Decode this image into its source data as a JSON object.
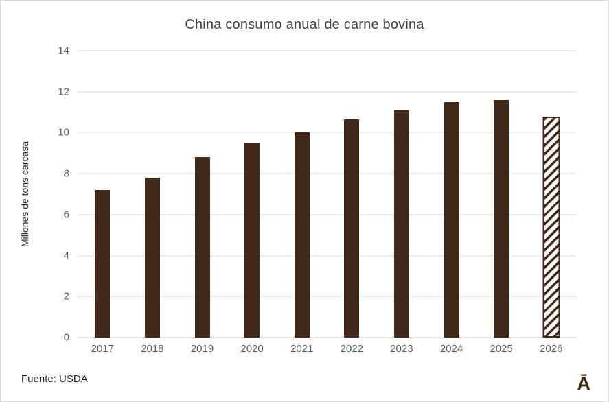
{
  "title": "China consumo anual de carne bovina",
  "source_label": "Fuente: USDA",
  "logo_text": "Ā",
  "colors": {
    "bar_fill": "#402918",
    "gridline": "#d9d9d9",
    "axis_label_text": "#595959",
    "title_text": "#404040"
  },
  "chart_data": {
    "type": "bar",
    "title": "China consumo anual de carne bovina",
    "categories": [
      "2017",
      "2018",
      "2019",
      "2020",
      "2021",
      "2022",
      "2023",
      "2024",
      "2025",
      "2026"
    ],
    "values": [
      7.2,
      7.8,
      8.8,
      9.5,
      10.0,
      10.65,
      11.1,
      11.5,
      11.6,
      10.8
    ],
    "xlabel": "",
    "ylabel": "Millones de tons carcasa",
    "ylim": [
      0,
      14
    ],
    "y_ticks": [
      0,
      2,
      4,
      6,
      8,
      10,
      12,
      14
    ],
    "grid": true,
    "legend": "none",
    "notes": "Last bar (2026) is a hatched forecast bar with diagonal stripes"
  }
}
